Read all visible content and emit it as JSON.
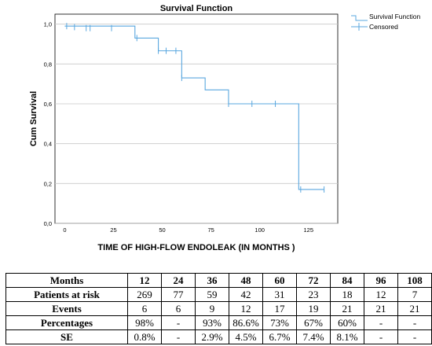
{
  "chart_data": {
    "type": "line",
    "title": "Survival Function",
    "xlabel": "TIME OF HIGH-FLOW ENDOLEAK (IN MONTHS )",
    "ylabel": "Cum Survival",
    "xlim": [
      -5,
      140
    ],
    "ylim": [
      0,
      1.05
    ],
    "x_ticks": [
      0,
      25,
      50,
      75,
      100,
      125
    ],
    "y_ticks": [
      0.0,
      0.2,
      0.4,
      0.6,
      0.8,
      1.0
    ],
    "y_tick_labels": [
      "0,0",
      "0,2",
      "0,4",
      "0,6",
      "0,8",
      "1,0"
    ],
    "grid": "horizontal",
    "legend_position": "top-right",
    "legend": [
      "Survival Function",
      "Censored"
    ],
    "color": "#5aa7df",
    "series": [
      {
        "name": "Survival Function",
        "x": [
          0,
          36,
          48,
          60,
          72,
          84,
          120,
          133
        ],
        "y": [
          0.99,
          0.93,
          0.866,
          0.73,
          0.67,
          0.6,
          0.17,
          0.17
        ]
      },
      {
        "name": "Censored",
        "x": [
          1,
          5,
          11,
          13,
          24,
          37,
          48,
          52,
          57,
          60,
          84,
          96,
          108,
          121,
          133
        ],
        "y": [
          0.99,
          0.985,
          0.98,
          0.98,
          0.98,
          0.93,
          0.866,
          0.866,
          0.866,
          0.73,
          0.6,
          0.6,
          0.6,
          0.17,
          0.17
        ]
      }
    ]
  },
  "table": {
    "header_label": "Months",
    "months": [
      "12",
      "24",
      "36",
      "48",
      "60",
      "72",
      "84",
      "96",
      "108"
    ],
    "rows": [
      {
        "label": "Patients at risk",
        "values": [
          "269",
          "77",
          "59",
          "42",
          "31",
          "23",
          "18",
          "12",
          "7"
        ]
      },
      {
        "label": "Events",
        "values": [
          "6",
          "6",
          "9",
          "12",
          "17",
          "19",
          "21",
          "21",
          "21"
        ]
      },
      {
        "label": "Percentages",
        "values": [
          "98%",
          "-",
          "93%",
          "86.6%",
          "73%",
          "67%",
          "60%",
          "-",
          "-"
        ]
      },
      {
        "label": "SE",
        "values": [
          "0.8%",
          "-",
          "2.9%",
          "4.5%",
          "6.7%",
          "7.4%",
          "8.1%",
          "-",
          "-"
        ]
      }
    ]
  }
}
